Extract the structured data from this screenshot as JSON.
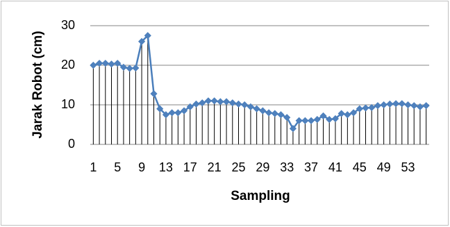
{
  "chart_data": {
    "type": "line",
    "x_label": "Sampling",
    "y_label": "Jarak Robot (cm)",
    "categories": [
      "1",
      null,
      null,
      null,
      "5",
      null,
      null,
      null,
      "9",
      null,
      null,
      null,
      "13",
      null,
      null,
      null,
      "17",
      null,
      null,
      null,
      "21",
      null,
      null,
      null,
      "25",
      null,
      null,
      null,
      "29",
      null,
      null,
      null,
      "33",
      null,
      null,
      null,
      "37",
      null,
      null,
      null,
      "41",
      null,
      null,
      null,
      "45",
      null,
      null,
      null,
      "49",
      null,
      null,
      null,
      "53",
      null,
      null,
      null
    ],
    "values": [
      20,
      20.5,
      20.5,
      20.3,
      20.5,
      19.5,
      19.2,
      19.3,
      26,
      27.5,
      12.8,
      9,
      7.5,
      8,
      8,
      8.5,
      9.5,
      10.2,
      10.5,
      11,
      11,
      10.8,
      10.8,
      10.5,
      10.2,
      10,
      9.5,
      9,
      8.5,
      8,
      7.8,
      7.5,
      6.8,
      4,
      6,
      6,
      6,
      6.3,
      7.2,
      6.3,
      6.5,
      7.8,
      7.5,
      8,
      9,
      9.2,
      9.3,
      9.8,
      10,
      10.2,
      10.3,
      10.3,
      10,
      9.8,
      9.5,
      9.8
    ],
    "color": "#4a7ebb",
    "marker_color": "#4f81bd",
    "drop_line_color": "#000000",
    "drop_lines": true,
    "ylim": [
      0,
      30
    ],
    "yticks": [
      0,
      10,
      20,
      30
    ],
    "grid": true
  }
}
